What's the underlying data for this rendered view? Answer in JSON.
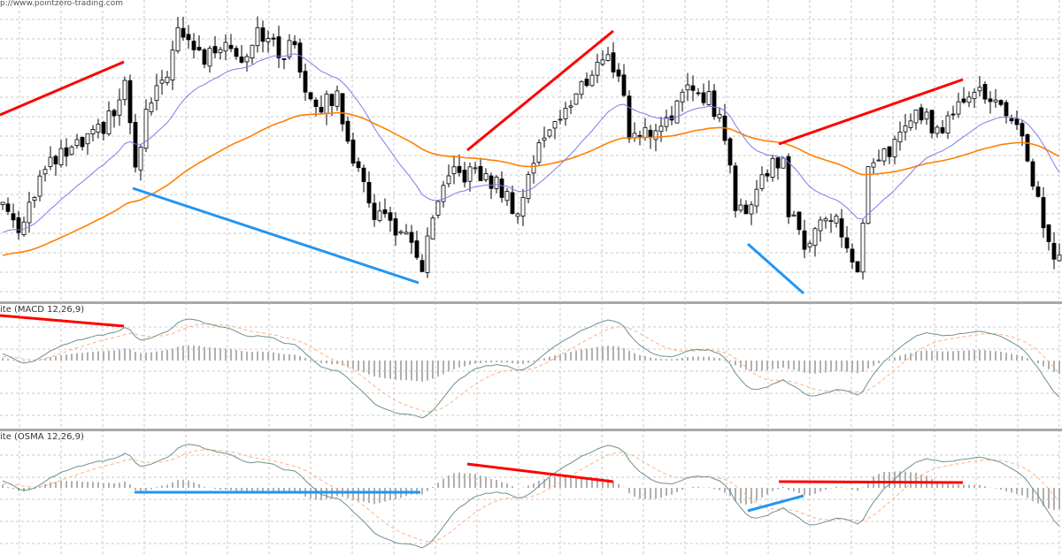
{
  "watermark": "p://www.pointzero-trading.com",
  "panels": {
    "macd_label": "ite (MACD 12,26,9)",
    "osma_label": "ite (OSMA 12,26,9)"
  },
  "colors": {
    "bull_body": "#ffffff",
    "bear_body": "#000000",
    "fast_ma": "#7b7bf0",
    "slow_ma": "#ff8000",
    "bearish_divergence": "#ff0000",
    "bullish_divergence": "#2196f3",
    "macd_line": "#6f9090",
    "signal_line": "#ffb080",
    "histogram": "#b0b0b0",
    "grid": "#c8c8c8",
    "separator": "#a0a0a0"
  },
  "chart_data": {
    "type": "candlestick",
    "title": "",
    "xlabel": "",
    "ylabel": "",
    "ylim": [
      0,
      100
    ],
    "grid": true,
    "bars": 200,
    "price_path": [
      [
        0,
        33
      ],
      [
        3,
        25
      ],
      [
        7,
        41
      ],
      [
        10,
        47
      ],
      [
        15,
        52
      ],
      [
        18,
        56
      ],
      [
        22,
        65
      ],
      [
        23,
        74
      ],
      [
        25,
        42
      ],
      [
        27,
        62
      ],
      [
        30,
        72
      ],
      [
        33,
        88
      ],
      [
        36,
        85
      ],
      [
        38,
        80
      ],
      [
        42,
        88
      ],
      [
        45,
        80
      ],
      [
        48,
        91
      ],
      [
        52,
        82
      ],
      [
        55,
        85
      ],
      [
        57,
        71
      ],
      [
        60,
        65
      ],
      [
        63,
        68
      ],
      [
        67,
        42
      ],
      [
        70,
        30
      ],
      [
        73,
        27
      ],
      [
        77,
        18
      ],
      [
        79,
        12
      ],
      [
        82,
        33
      ],
      [
        85,
        42
      ],
      [
        88,
        43
      ],
      [
        93,
        39
      ],
      [
        97,
        30
      ],
      [
        100,
        47
      ],
      [
        103,
        59
      ],
      [
        107,
        65
      ],
      [
        110,
        74
      ],
      [
        113,
        81
      ],
      [
        116,
        77
      ],
      [
        118,
        56
      ],
      [
        122,
        56
      ],
      [
        127,
        65
      ],
      [
        130,
        71
      ],
      [
        133,
        68
      ],
      [
        136,
        56
      ],
      [
        138,
        30
      ],
      [
        141,
        33
      ],
      [
        143,
        42
      ],
      [
        147,
        49
      ],
      [
        148,
        30
      ],
      [
        151,
        18
      ],
      [
        153,
        27
      ],
      [
        157,
        27
      ],
      [
        161,
        9
      ],
      [
        163,
        42
      ],
      [
        167,
        50
      ],
      [
        170,
        59
      ],
      [
        173,
        62
      ],
      [
        177,
        56
      ],
      [
        180,
        68
      ],
      [
        183,
        71
      ],
      [
        187,
        65
      ],
      [
        190,
        62
      ],
      [
        193,
        47
      ],
      [
        196,
        27
      ],
      [
        198,
        12
      ],
      [
        200,
        18
      ]
    ],
    "series": [
      {
        "name": "Fast MA",
        "type": "line"
      },
      {
        "name": "Slow MA",
        "type": "line"
      },
      {
        "name": "MACD 12,26,9",
        "type": "line+histogram"
      },
      {
        "name": "OSMA 12,26,9",
        "type": "line+histogram"
      }
    ]
  }
}
